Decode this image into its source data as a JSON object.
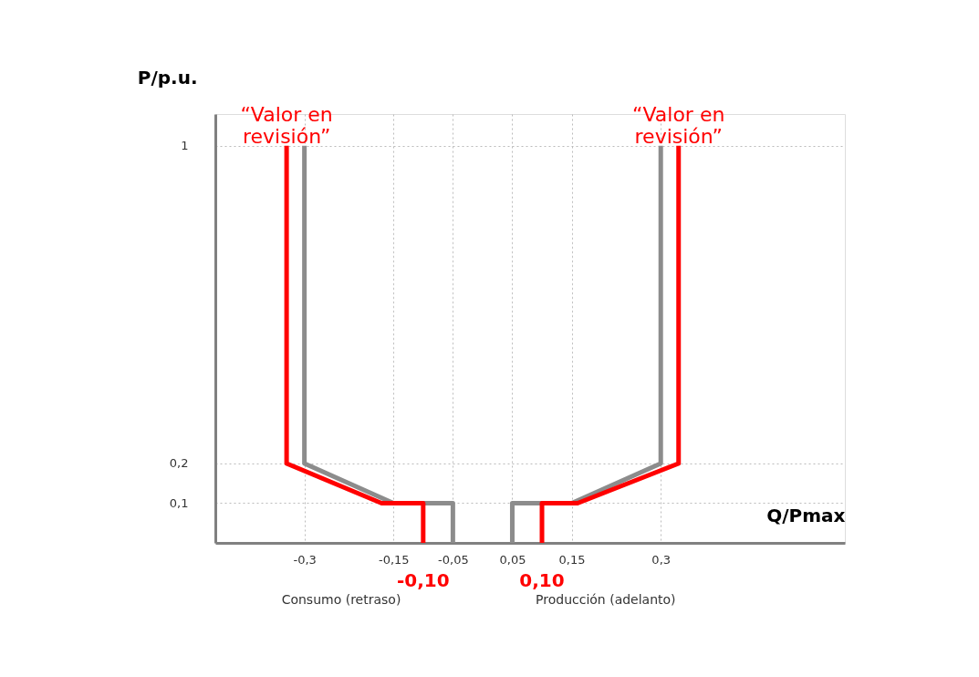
{
  "chart_data": {
    "type": "line",
    "xlabel": "Q/Pmax",
    "ylabel": "P/p.u.",
    "xlim": [
      -0.45,
      0.61
    ],
    "ylim": [
      0,
      1.08
    ],
    "xticks": [
      {
        "value": -0.3,
        "label": "-0,3"
      },
      {
        "value": -0.15,
        "label": "-0,15"
      },
      {
        "value": -0.05,
        "label": "-0,05"
      },
      {
        "value": 0.05,
        "label": "0,05"
      },
      {
        "value": 0.15,
        "label": "0,15"
      },
      {
        "value": 0.3,
        "label": "0,3"
      }
    ],
    "yticks": [
      {
        "value": 0.1,
        "label": "0,1"
      },
      {
        "value": 0.2,
        "label": "0,2"
      },
      1
    ],
    "grid": true,
    "legend": false,
    "marker": "none",
    "line_style": "solid",
    "series": [
      {
        "color": "#8c8c8c",
        "x": [
          -0.3,
          -0.3,
          -0.15,
          -0.05,
          -0.05
        ],
        "values": [
          1,
          0.2,
          0.1,
          0.1,
          0
        ]
      },
      {
        "color": "#8c8c8c",
        "x": [
          0.05,
          0.05,
          0.15,
          0.3,
          0.3
        ],
        "values": [
          0,
          0.1,
          0.1,
          0.2,
          1
        ]
      },
      {
        "color": "#ff0000",
        "x": [
          -0.33,
          -0.33,
          -0.17,
          -0.1,
          -0.1
        ],
        "values": [
          1,
          0.2,
          0.1,
          0.1,
          0
        ]
      },
      {
        "color": "#ff0000",
        "x": [
          0.1,
          0.1,
          0.16,
          0.33,
          0.33
        ],
        "values": [
          0,
          0.1,
          0.1,
          0.2,
          1
        ]
      }
    ],
    "annotations": [
      {
        "text": "“Valor en revisión”",
        "x": -0.33,
        "y": 1
      },
      {
        "text": "“Valor en revisión”",
        "x": 0.33,
        "y": 1
      },
      {
        "text": "-0,10",
        "x": -0.1,
        "y": 0
      },
      {
        "text": "0,10",
        "x": 0.1,
        "y": 0
      },
      "Consumo (retraso)",
      "Producción (adelanto)"
    ]
  }
}
